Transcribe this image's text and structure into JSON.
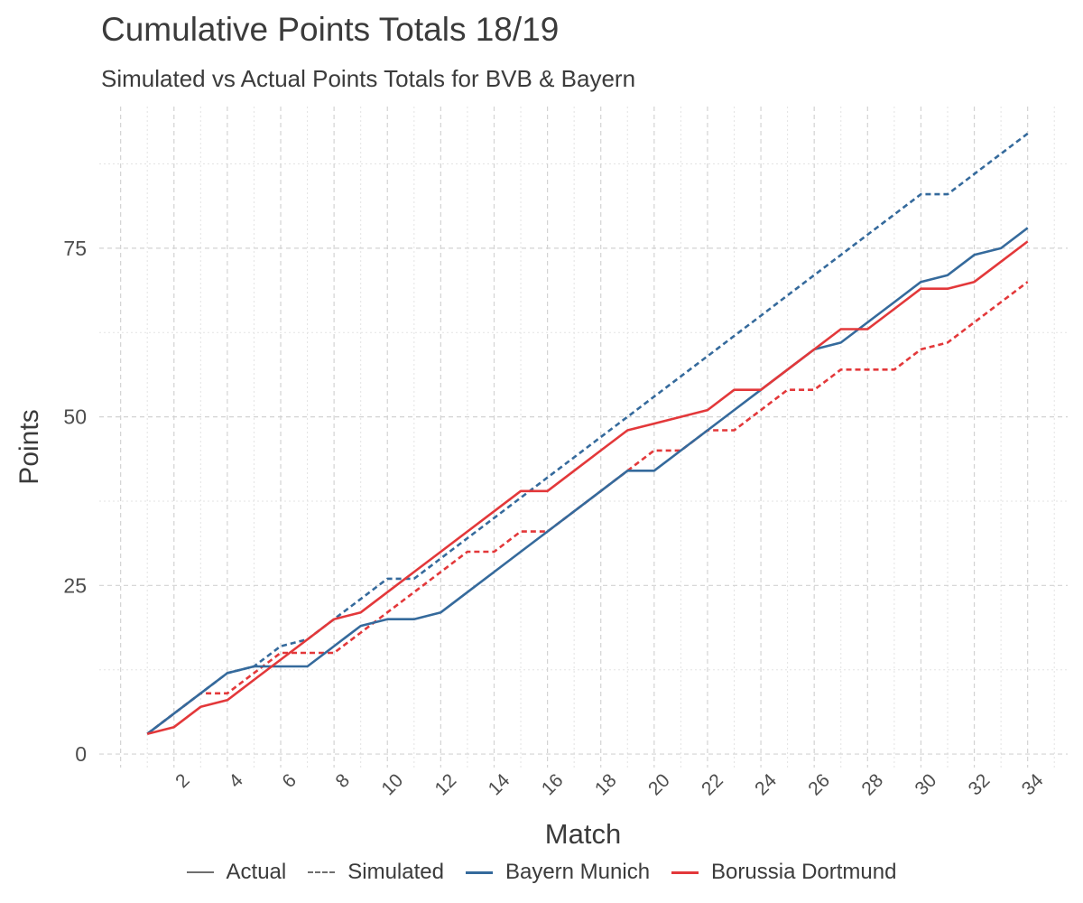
{
  "chart_data": {
    "type": "line",
    "title": "Cumulative Points Totals 18/19",
    "subtitle": "Simulated vs Actual Points Totals for BVB & Bayern",
    "xlabel": "Match",
    "ylabel": "Points",
    "x": [
      1,
      2,
      3,
      4,
      5,
      6,
      7,
      8,
      9,
      10,
      11,
      12,
      13,
      14,
      15,
      16,
      17,
      18,
      19,
      20,
      21,
      22,
      23,
      24,
      25,
      26,
      27,
      28,
      29,
      30,
      31,
      32,
      33,
      34
    ],
    "xlim": [
      -0.8,
      35.5
    ],
    "ylim": [
      -2,
      96
    ],
    "x_ticks": [
      2,
      4,
      6,
      8,
      10,
      12,
      14,
      16,
      18,
      20,
      22,
      24,
      26,
      28,
      30,
      32,
      34
    ],
    "x_tick_labels": [
      "2",
      "4",
      "6",
      "8",
      "10",
      "12",
      "14",
      "16",
      "18",
      "20",
      "22",
      "24",
      "26",
      "28",
      "30",
      "32",
      "34"
    ],
    "y_ticks": [
      0,
      25,
      50,
      75
    ],
    "y_tick_labels": [
      "0",
      "25",
      "50",
      "75"
    ],
    "grid": true,
    "legend_position": "bottom",
    "colors": {
      "bayern": "#356a9c",
      "dortmund": "#e3383a",
      "legend_grey": "#6e6e6e"
    },
    "legend": {
      "linetype": [
        {
          "label": "Actual",
          "style": "solid"
        },
        {
          "label": "Simulated",
          "style": "dashed"
        }
      ],
      "team": [
        {
          "label": "Bayern Munich",
          "color": "#356a9c"
        },
        {
          "label": "Borussia Dortmund",
          "color": "#e3383a"
        }
      ]
    },
    "series": [
      {
        "team": "Bayern Munich",
        "linetype": "Simulated",
        "color": "#356a9c",
        "values": [
          3,
          6,
          9,
          12,
          13,
          16,
          17,
          20,
          23,
          26,
          26,
          29,
          32,
          35,
          38,
          41,
          44,
          47,
          50,
          53,
          56,
          59,
          62,
          65,
          68,
          71,
          74,
          77,
          80,
          83,
          83,
          86,
          89,
          92
        ]
      },
      {
        "team": "Borussia Dortmund",
        "linetype": "Simulated",
        "color": "#e3383a",
        "values": [
          3,
          6,
          9,
          9,
          12,
          15,
          15,
          15,
          18,
          21,
          24,
          27,
          30,
          30,
          33,
          33,
          36,
          39,
          42,
          45,
          45,
          48,
          48,
          51,
          54,
          54,
          57,
          57,
          57,
          60,
          61,
          64,
          67,
          70
        ]
      },
      {
        "team": "Bayern Munich",
        "linetype": "Actual",
        "color": "#356a9c",
        "values": [
          3,
          6,
          9,
          12,
          13,
          13,
          13,
          16,
          19,
          20,
          20,
          21,
          24,
          27,
          30,
          33,
          36,
          39,
          42,
          42,
          45,
          48,
          51,
          54,
          57,
          60,
          61,
          64,
          67,
          70,
          71,
          74,
          75,
          78
        ]
      },
      {
        "team": "Borussia Dortmund",
        "linetype": "Actual",
        "color": "#e3383a",
        "values": [
          3,
          4,
          7,
          8,
          11,
          14,
          17,
          20,
          21,
          24,
          27,
          30,
          33,
          36,
          39,
          39,
          42,
          45,
          48,
          49,
          50,
          51,
          54,
          54,
          57,
          60,
          63,
          63,
          66,
          69,
          69,
          70,
          73,
          76
        ]
      }
    ]
  }
}
